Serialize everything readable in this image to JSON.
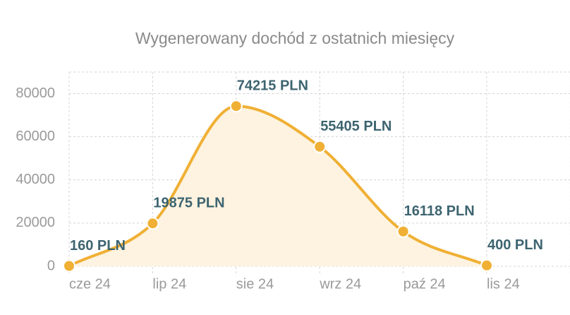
{
  "chart_data": {
    "type": "area",
    "title": "Wygenerowany dochód z ostatnich miesięcy",
    "categories": [
      "cze 24",
      "lip 24",
      "sie 24",
      "wrz 24",
      "paź 24",
      "lis 24"
    ],
    "values": [
      160,
      19875,
      74215,
      55405,
      16118,
      400
    ],
    "value_labels": [
      "160 PLN",
      "19875 PLN",
      "74215 PLN",
      "55405 PLN",
      "16118 PLN",
      "400 PLN"
    ],
    "color": "#f0b035",
    "fill": "#fdf3e0",
    "ylim": [
      0,
      90000
    ],
    "yticks": [
      0,
      20000,
      40000,
      60000,
      80000
    ],
    "grid": true
  }
}
